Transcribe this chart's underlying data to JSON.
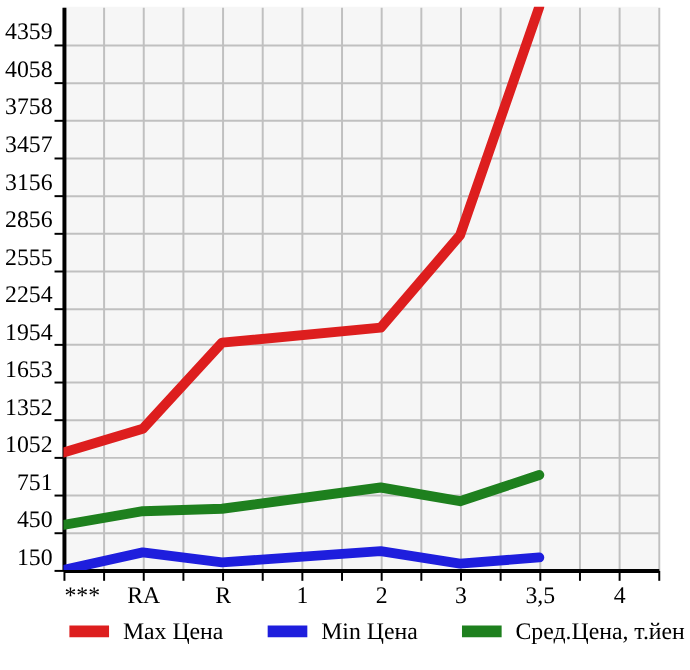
{
  "chart_data": {
    "type": "line",
    "categories": [
      "***",
      "RA",
      "R",
      "1",
      "2",
      "3",
      "3,5",
      "4"
    ],
    "series": [
      {
        "name": "Max Цена",
        "color": "#dd1e1e",
        "values": [
          1090,
          1280,
          1970,
          null,
          2090,
          2830,
          4660,
          null
        ]
      },
      {
        "name": "Min Цена",
        "color": "#1e1edd",
        "values": [
          150,
          290,
          210,
          null,
          300,
          200,
          250,
          null
        ]
      },
      {
        "name": "Сред.Цена, т.йен",
        "color": "#1e801e",
        "values": [
          510,
          620,
          640,
          null,
          810,
          700,
          910,
          null
        ]
      }
    ],
    "ylim": [
      150,
      4660
    ],
    "yticks": [
      150,
      450,
      751,
      1052,
      1352,
      1653,
      1954,
      2254,
      2555,
      2856,
      3156,
      3457,
      3758,
      4058,
      4359
    ],
    "grid": true,
    "legend": "bottom",
    "marker": "none",
    "line_style": "solid"
  }
}
